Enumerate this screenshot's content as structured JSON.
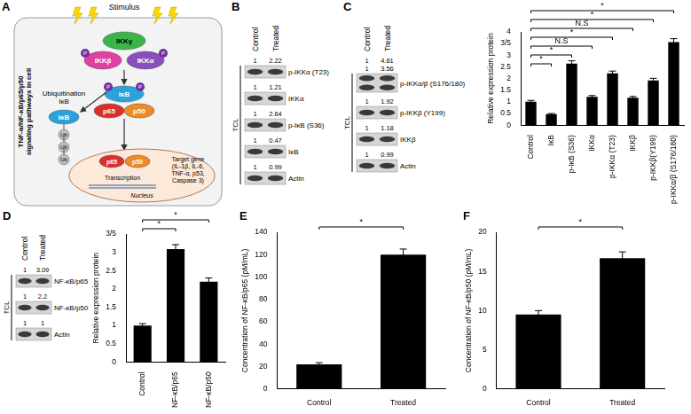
{
  "chart_data": [
    {
      "type": "bar",
      "y_label": "Relative expression protein",
      "categories": [
        "Control",
        "IκB",
        "p-IκB (S36)",
        "IKKα",
        "p-IKKα (T23)",
        "IKKβ",
        "p-IKKβ(Y199)",
        "p-IKKα/β (S176/180)"
      ],
      "values": [
        1,
        0.47,
        2.64,
        1.21,
        2.22,
        1.18,
        1.92,
        3.56
      ],
      "errors": [
        0.06,
        0.03,
        0.12,
        0.06,
        0.1,
        0.05,
        0.09,
        0.15
      ],
      "color": "#000000",
      "ylim": [
        0,
        4
      ],
      "yticks": [
        0,
        0.5,
        1,
        1.5,
        2,
        2.5,
        3,
        {
          "value": 3.5,
          "label": "3/5"
        },
        4
      ],
      "grid": false,
      "annotations": [
        {
          "from": "Control",
          "to": "IκB",
          "label": "*"
        },
        {
          "from": "Control",
          "to": "p-IκB (S36)",
          "label": "*"
        },
        {
          "from": "Control",
          "to": "IKKα",
          "label": "N.S"
        },
        {
          "from": "Control",
          "to": "p-IKKα (T23)",
          "label": "*"
        },
        {
          "from": "Control",
          "to": "IKKβ",
          "label": "N.S"
        },
        {
          "from": "Control",
          "to": "p-IKKβ(Y199)",
          "label": "*"
        },
        {
          "from": "Control",
          "to": "p-IKKα/β (S176/180)",
          "label": "*"
        }
      ]
    },
    {
      "type": "bar",
      "y_label": "Relative expression protein",
      "categories": [
        "Control",
        "NF-κB/p65",
        "NF-κB/p50"
      ],
      "values": [
        1,
        3.09,
        2.2
      ],
      "errors": [
        0.05,
        0.12,
        0.1
      ],
      "color": "#000000",
      "ylim": [
        0,
        3.5
      ],
      "yticks": [
        0,
        0.5,
        1,
        1.5,
        2,
        2.5,
        3,
        {
          "value": 3.5,
          "label": "3/5"
        }
      ],
      "grid": false,
      "annotations": [
        {
          "from": "Control",
          "to": "NF-κB/p65",
          "label": "*"
        },
        {
          "from": "Control",
          "to": "NF-κB/p50",
          "label": "*"
        }
      ]
    },
    {
      "type": "bar",
      "panel_label": "E",
      "y_label": "Concentration of NF-κB/p65 (ρM/mL)",
      "categories": [
        "Control",
        "Treated"
      ],
      "values": [
        22,
        120
      ],
      "errors": [
        1.5,
        5
      ],
      "color": "#000000",
      "ylim": [
        0,
        140
      ],
      "yticks": [
        0,
        20,
        40,
        60,
        80,
        100,
        120,
        140
      ],
      "grid": false,
      "annotations": [
        {
          "from": "Control",
          "to": "Treated",
          "label": "*"
        }
      ]
    },
    {
      "type": "bar",
      "panel_label": "F",
      "y_label": "Concentration of NF-κB/p50 (ρM/mL)",
      "categories": [
        "Control",
        "Treated"
      ],
      "values": [
        9.5,
        16.7
      ],
      "errors": [
        0.5,
        0.8
      ],
      "color": "#000000",
      "ylim": [
        0,
        20
      ],
      "yticks": [
        0,
        5,
        10,
        15,
        20
      ],
      "grid": false,
      "annotations": [
        {
          "from": "Control",
          "to": "Treated",
          "label": "*"
        }
      ]
    }
  ],
  "figure": {
    "diagram": {
      "letter": "A",
      "stimulus": "Stimulus",
      "title": "TNF-α/NF-κB/p65/p50 signaling pathways in cell",
      "ikk_gamma": "IKKγ",
      "ikk_beta": "IKKβ",
      "ikk_alpha": "IKKα",
      "phospho": "P",
      "ikb": "IκB",
      "p65": "p65",
      "p50": "p50",
      "ubiquitination": "Ubiquitination IκB",
      "ub": [
        "Ub",
        "Ub",
        "Ub"
      ],
      "nucleus": "Nucleus",
      "transcription": "Transcription",
      "target": "Target gene (IL-1β, IL-6, TNF-α, p53, Caspase 3)"
    },
    "blots": [
      {
        "letter": "B",
        "lanes": [
          "Control",
          "Treated"
        ],
        "side_label": "TCL",
        "rows": [
          {
            "label": "p-IKKα (T23)",
            "quantification": [
              [
                1,
                2.22
              ]
            ]
          },
          {
            "label": "IKKα",
            "quantification": [
              [
                1,
                1.21
              ]
            ]
          },
          {
            "label": "p-IκB (S36)",
            "quantification": [
              [
                1,
                2.64
              ]
            ]
          },
          {
            "label": "IκB",
            "quantification": [
              [
                1,
                0.47
              ]
            ]
          },
          {
            "label": "Actin",
            "quantification": [
              [
                1,
                0.99
              ]
            ]
          }
        ]
      },
      {
        "letter": "C",
        "lanes": [
          "Control",
          "Treated"
        ],
        "side_label": "TCL",
        "rows": [
          {
            "label": "p-IKKα/β (S176/180)",
            "quantification": [
              [
                1,
                4.61
              ],
              [
                1,
                3.56
              ]
            ]
          },
          {
            "label": "p-IKKβ (Y199)",
            "quantification": [
              [
                1,
                1.92
              ]
            ]
          },
          {
            "label": "IKKβ",
            "quantification": [
              [
                1,
                1.18
              ]
            ]
          },
          {
            "label": "Actin",
            "quantification": [
              [
                1,
                0.99
              ]
            ]
          }
        ]
      },
      {
        "letter": "D",
        "lanes": [
          "Control",
          "Treated"
        ],
        "side_label": "TCL",
        "rows": [
          {
            "label": "NF-κB/p65",
            "quantification": [
              [
                1,
                3.09
              ]
            ]
          },
          {
            "label": "NF-κB/p50",
            "quantification": [
              [
                1,
                2.2
              ]
            ]
          },
          {
            "label": "Actin",
            "quantification": [
              [
                1,
                1
              ]
            ]
          }
        ]
      }
    ]
  }
}
